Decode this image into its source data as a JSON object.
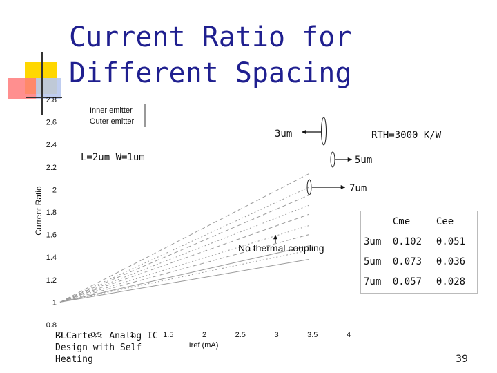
{
  "title": {
    "line1": "Current Ratio for",
    "line2": "Different Spacing"
  },
  "citation": "RLCarter: Analog IC Design with Self Heating",
  "page_number": "39",
  "annotations": {
    "rth": "RTH=3000 K/W",
    "dims": "L=2um W=1um",
    "no_coupling": "No thermal coupling",
    "spacing_3": "3um",
    "spacing_5": "5um",
    "spacing_7": "7um"
  },
  "legend": {
    "inner": "Inner emitter",
    "outer": "Outer emitter"
  },
  "table": {
    "headers": [
      "",
      "Cme",
      "Cee"
    ],
    "rows": [
      [
        "3um",
        "0.102",
        "0.051"
      ],
      [
        "5um",
        "0.073",
        "0.036"
      ],
      [
        "7um",
        "0.057",
        "0.028"
      ]
    ]
  },
  "colors": {
    "title": "#1f1f8f",
    "line": "#9a9a9a",
    "deco_yellow": "#ffd700",
    "deco_red": "#ff6b6b"
  },
  "chart_data": {
    "type": "line",
    "xlabel": "Iref (mA)",
    "ylabel": "Current Ratio",
    "xlim": [
      0,
      4
    ],
    "ylim": [
      0.8,
      2.8
    ],
    "x_ticks": [
      "0",
      "0.5",
      "1",
      "1.5",
      "2",
      "2.5",
      "3",
      "3.5",
      "4"
    ],
    "y_ticks": [
      "0.8",
      "1",
      "1.2",
      "1.4",
      "1.6",
      "1.8",
      "2",
      "2.2",
      "2.4",
      "2.6",
      "2.8"
    ],
    "series": [
      {
        "name": "",
        "style": "dashed",
        "x": [
          0,
          3.45
        ],
        "y": [
          1.0,
          2.14
        ]
      },
      {
        "name": "",
        "style": "dotted",
        "x": [
          0,
          3.45
        ],
        "y": [
          1.0,
          2.02
        ]
      },
      {
        "name": "",
        "style": "dashed",
        "x": [
          0,
          3.45
        ],
        "y": [
          1.0,
          1.95
        ]
      },
      {
        "name": "",
        "style": "dotted",
        "x": [
          0,
          3.45
        ],
        "y": [
          1.0,
          1.86
        ]
      },
      {
        "name": "",
        "style": "dashed",
        "x": [
          0,
          3.45
        ],
        "y": [
          1.0,
          1.78
        ]
      },
      {
        "name": "",
        "style": "dotted",
        "x": [
          0,
          3.45
        ],
        "y": [
          1.0,
          1.68
        ]
      },
      {
        "name": "",
        "style": "dashed",
        "x": [
          0,
          3.45
        ],
        "y": [
          1.0,
          1.6
        ]
      },
      {
        "name": "",
        "style": "dotted",
        "x": [
          0,
          3.45
        ],
        "y": [
          1.0,
          1.46
        ]
      },
      {
        "name": "",
        "style": "solid",
        "x": [
          0,
          3.45
        ],
        "y": [
          1.0,
          1.38
        ]
      },
      {
        "name": "",
        "style": "solid",
        "x": [
          0,
          3.45
        ],
        "y": [
          1.0,
          1.5
        ]
      }
    ]
  }
}
